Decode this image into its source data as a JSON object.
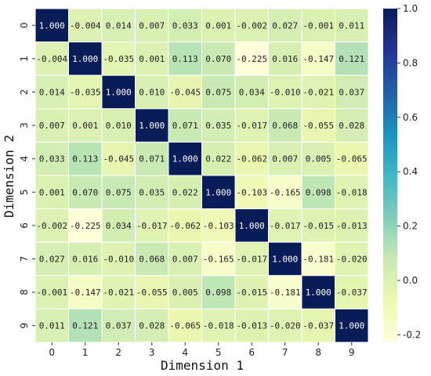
{
  "chart_data": {
    "type": "heatmap",
    "xlabel": "Dimension 1",
    "ylabel": "Dimension 2",
    "x_categories": [
      "0",
      "1",
      "2",
      "3",
      "4",
      "5",
      "6",
      "7",
      "8",
      "9"
    ],
    "y_categories": [
      "0",
      "1",
      "2",
      "3",
      "4",
      "5",
      "6",
      "7",
      "8",
      "9"
    ],
    "matrix": [
      [
        1.0,
        -0.004,
        0.014,
        0.007,
        0.033,
        0.001,
        -0.002,
        0.027,
        -0.001,
        0.011
      ],
      [
        -0.004,
        1.0,
        -0.035,
        0.001,
        0.113,
        0.07,
        -0.225,
        0.016,
        -0.147,
        0.121
      ],
      [
        0.014,
        -0.035,
        1.0,
        0.01,
        -0.045,
        0.075,
        0.034,
        -0.01,
        -0.021,
        0.037
      ],
      [
        0.007,
        0.001,
        0.01,
        1.0,
        0.071,
        0.035,
        -0.017,
        0.068,
        -0.055,
        0.028
      ],
      [
        0.033,
        0.113,
        -0.045,
        0.071,
        1.0,
        0.022,
        -0.062,
        0.007,
        0.005,
        -0.065
      ],
      [
        0.001,
        0.07,
        0.075,
        0.035,
        0.022,
        1.0,
        -0.103,
        -0.165,
        0.098,
        -0.018
      ],
      [
        -0.002,
        -0.225,
        0.034,
        -0.017,
        -0.062,
        -0.103,
        1.0,
        -0.017,
        -0.015,
        -0.013
      ],
      [
        0.027,
        0.016,
        -0.01,
        0.068,
        0.007,
        -0.165,
        -0.017,
        1.0,
        -0.181,
        -0.02
      ],
      [
        -0.001,
        -0.147,
        -0.021,
        -0.055,
        0.005,
        0.098,
        -0.015,
        -0.181,
        1.0,
        -0.037
      ],
      [
        0.011,
        0.121,
        0.037,
        0.028,
        -0.065,
        -0.018,
        -0.013,
        -0.02,
        -0.037,
        1.0
      ]
    ],
    "value_format_decimals": 3,
    "colorbar": {
      "range": [
        -0.225,
        1.0
      ],
      "ticks": [
        "1.0",
        "0.8",
        "0.6",
        "0.4",
        "0.2",
        "0.0",
        "-0.2"
      ],
      "tick_values": [
        1.0,
        0.8,
        0.6,
        0.4,
        0.2,
        0.0,
        -0.2
      ],
      "colormap": "YlGnBu"
    },
    "grid_lines": "white"
  }
}
